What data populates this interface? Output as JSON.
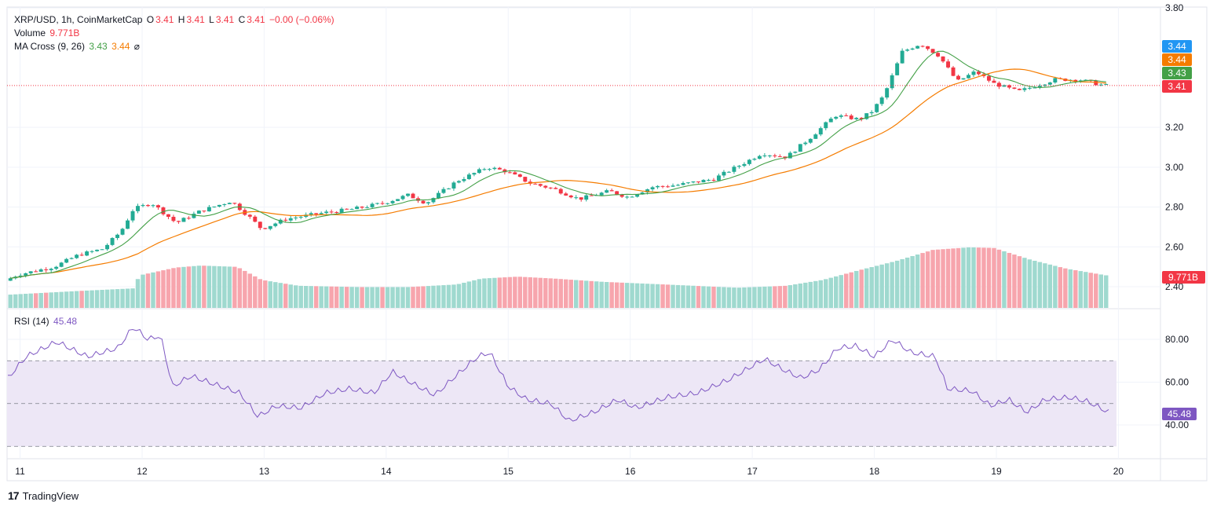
{
  "legend": {
    "symbol": "XRP/USD, 1h, CoinMarketCap",
    "o_label": "O",
    "o_value": "3.41",
    "h_label": "H",
    "h_value": "3.41",
    "l_label": "L",
    "l_value": "3.41",
    "c_label": "C",
    "c_value": "3.41",
    "change": "−0.00 (−0.06%)",
    "volume_label": "Volume",
    "volume_value": "9.771B",
    "ma_label": "MA Cross (9, 26)",
    "ma_fast_value": "3.43",
    "ma_slow_value": "3.44",
    "ma_icon": "⌀",
    "rsi_label": "RSI (14)",
    "rsi_value": "45.48"
  },
  "brand": {
    "mark": "17",
    "name": "TradingView"
  },
  "colors": {
    "up": "#22ab94",
    "down": "#f23645",
    "vol_up": "#9fd9cf",
    "vol_down": "#f7a5ad",
    "ma_fast": "#43a047",
    "ma_slow": "#f57c00",
    "rsi_line": "#7e57c2",
    "rsi_band": "#ede7f6",
    "last_price": "#f23645",
    "blue_marker": "#2196f3"
  },
  "chart_data": {
    "type": "candlestick",
    "symbol": "XRP/USD",
    "interval": "1h",
    "x_start_day": 10.9,
    "x_end_day": 19.92,
    "x_ticks": [
      "11",
      "12",
      "13",
      "14",
      "15",
      "16",
      "17",
      "18",
      "19",
      "20"
    ],
    "price_ticks": [
      "3.80",
      "3.20",
      "3.00",
      "2.80",
      "2.60",
      "2.40"
    ],
    "price_range": [
      2.3,
      3.8
    ],
    "rsi_ticks": [
      "80.00",
      "60.00",
      "40.00"
    ],
    "rsi_range": [
      25,
      90
    ],
    "rsi_levels": [
      30,
      50,
      70
    ],
    "last_price": 3.41,
    "price_badges": [
      {
        "label": "3.44",
        "value": 3.44,
        "color": "#2196f3"
      },
      {
        "label": "3.44",
        "value": 3.44,
        "color": "#f57c00"
      },
      {
        "label": "3.43",
        "value": 3.43,
        "color": "#43a047"
      },
      {
        "label": "3.41",
        "value": 3.41,
        "color": "#f23645"
      }
    ],
    "volume_badge": "9.771B",
    "rsi_badge": "45.48",
    "price_path": [
      [
        10.9,
        2.43
      ],
      [
        11.0,
        2.46
      ],
      [
        11.3,
        2.5
      ],
      [
        11.5,
        2.56
      ],
      [
        11.7,
        2.59
      ],
      [
        11.85,
        2.68
      ],
      [
        11.95,
        2.79
      ],
      [
        12.1,
        2.82
      ],
      [
        12.3,
        2.72
      ],
      [
        12.5,
        2.78
      ],
      [
        12.75,
        2.83
      ],
      [
        12.9,
        2.75
      ],
      [
        13.0,
        2.69
      ],
      [
        13.2,
        2.74
      ],
      [
        13.5,
        2.77
      ],
      [
        13.75,
        2.79
      ],
      [
        14.0,
        2.82
      ],
      [
        14.2,
        2.86
      ],
      [
        14.35,
        2.82
      ],
      [
        14.6,
        2.93
      ],
      [
        14.85,
        3.0
      ],
      [
        15.0,
        2.98
      ],
      [
        15.2,
        2.92
      ],
      [
        15.4,
        2.89
      ],
      [
        15.6,
        2.84
      ],
      [
        15.85,
        2.88
      ],
      [
        16.0,
        2.85
      ],
      [
        16.2,
        2.9
      ],
      [
        16.4,
        2.91
      ],
      [
        16.7,
        2.94
      ],
      [
        16.95,
        3.02
      ],
      [
        17.1,
        3.07
      ],
      [
        17.3,
        3.05
      ],
      [
        17.5,
        3.15
      ],
      [
        17.7,
        3.26
      ],
      [
        17.9,
        3.24
      ],
      [
        18.0,
        3.28
      ],
      [
        18.1,
        3.36
      ],
      [
        18.25,
        3.58
      ],
      [
        18.4,
        3.62
      ],
      [
        18.55,
        3.56
      ],
      [
        18.7,
        3.43
      ],
      [
        18.85,
        3.48
      ],
      [
        19.0,
        3.42
      ],
      [
        19.2,
        3.38
      ],
      [
        19.5,
        3.44
      ],
      [
        19.7,
        3.44
      ],
      [
        19.9,
        3.41
      ]
    ],
    "volume_range": [
      0,
      13.5
    ],
    "volume_path": [
      [
        10.9,
        2.0
      ],
      [
        11.5,
        2.6
      ],
      [
        11.95,
        3.0
      ],
      [
        12.0,
        5.0
      ],
      [
        12.3,
        6.2
      ],
      [
        12.5,
        6.5
      ],
      [
        12.8,
        6.3
      ],
      [
        13.0,
        4.3
      ],
      [
        13.3,
        3.4
      ],
      [
        13.8,
        3.2
      ],
      [
        14.2,
        3.2
      ],
      [
        14.6,
        3.6
      ],
      [
        14.8,
        4.5
      ],
      [
        15.1,
        4.8
      ],
      [
        15.4,
        4.5
      ],
      [
        15.8,
        4.0
      ],
      [
        16.3,
        3.6
      ],
      [
        16.9,
        3.1
      ],
      [
        17.3,
        3.4
      ],
      [
        17.6,
        4.3
      ],
      [
        17.9,
        5.8
      ],
      [
        18.2,
        7.2
      ],
      [
        18.5,
        8.9
      ],
      [
        18.8,
        9.3
      ],
      [
        19.0,
        9.2
      ],
      [
        19.3,
        7.4
      ],
      [
        19.6,
        6.0
      ],
      [
        19.92,
        5.0
      ]
    ],
    "rsi_path": [
      [
        10.9,
        62
      ],
      [
        11.05,
        72
      ],
      [
        11.3,
        79
      ],
      [
        11.55,
        72
      ],
      [
        11.8,
        76
      ],
      [
        11.93,
        86
      ],
      [
        12.05,
        80
      ],
      [
        12.15,
        82
      ],
      [
        12.25,
        58
      ],
      [
        12.4,
        63
      ],
      [
        12.6,
        59
      ],
      [
        12.8,
        55
      ],
      [
        12.95,
        44
      ],
      [
        13.1,
        49
      ],
      [
        13.3,
        48
      ],
      [
        13.5,
        55
      ],
      [
        13.7,
        57
      ],
      [
        13.9,
        55
      ],
      [
        14.05,
        65
      ],
      [
        14.2,
        60
      ],
      [
        14.4,
        54
      ],
      [
        14.55,
        62
      ],
      [
        14.75,
        72
      ],
      [
        14.85,
        74
      ],
      [
        15.0,
        58
      ],
      [
        15.15,
        52
      ],
      [
        15.35,
        50
      ],
      [
        15.5,
        42
      ],
      [
        15.7,
        46
      ],
      [
        15.9,
        52
      ],
      [
        16.05,
        48
      ],
      [
        16.3,
        53
      ],
      [
        16.55,
        55
      ],
      [
        16.8,
        61
      ],
      [
        16.95,
        66
      ],
      [
        17.1,
        71
      ],
      [
        17.25,
        66
      ],
      [
        17.4,
        62
      ],
      [
        17.55,
        66
      ],
      [
        17.7,
        76
      ],
      [
        17.85,
        77
      ],
      [
        18.0,
        72
      ],
      [
        18.15,
        80
      ],
      [
        18.3,
        74
      ],
      [
        18.5,
        72
      ],
      [
        18.6,
        57
      ],
      [
        18.8,
        56
      ],
      [
        18.95,
        49
      ],
      [
        19.1,
        52
      ],
      [
        19.25,
        46
      ],
      [
        19.4,
        52
      ],
      [
        19.6,
        53
      ],
      [
        19.75,
        51
      ],
      [
        19.92,
        46
      ]
    ]
  }
}
